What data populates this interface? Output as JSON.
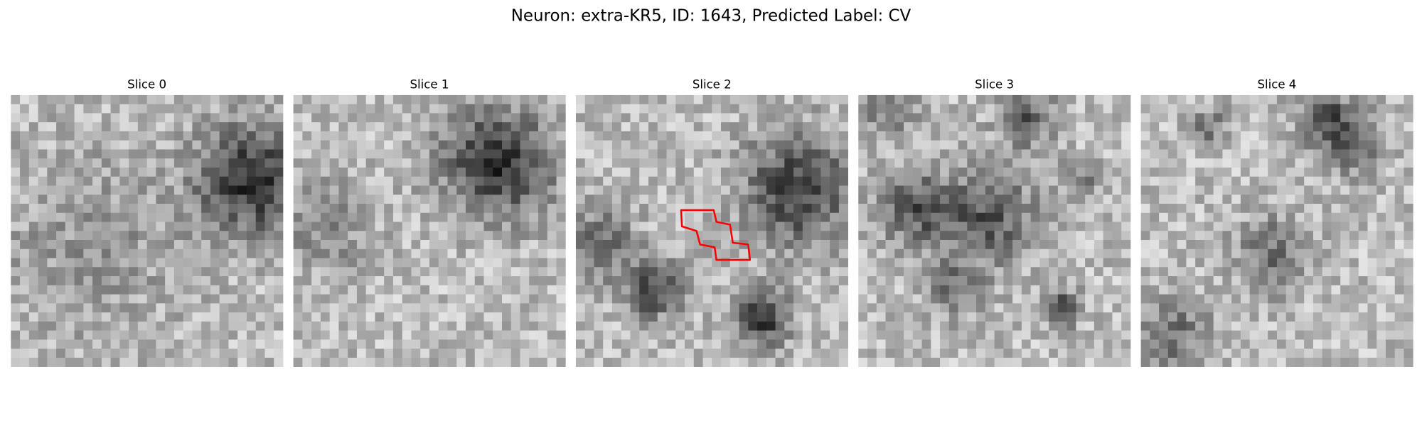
{
  "title": "Neuron: extra-KR5, ID: 1643, Predicted Label: CV",
  "panels": [
    {
      "title": "Slice 0"
    },
    {
      "title": "Slice 1"
    },
    {
      "title": "Slice 2"
    },
    {
      "title": "Slice 3"
    },
    {
      "title": "Slice 4"
    }
  ]
}
